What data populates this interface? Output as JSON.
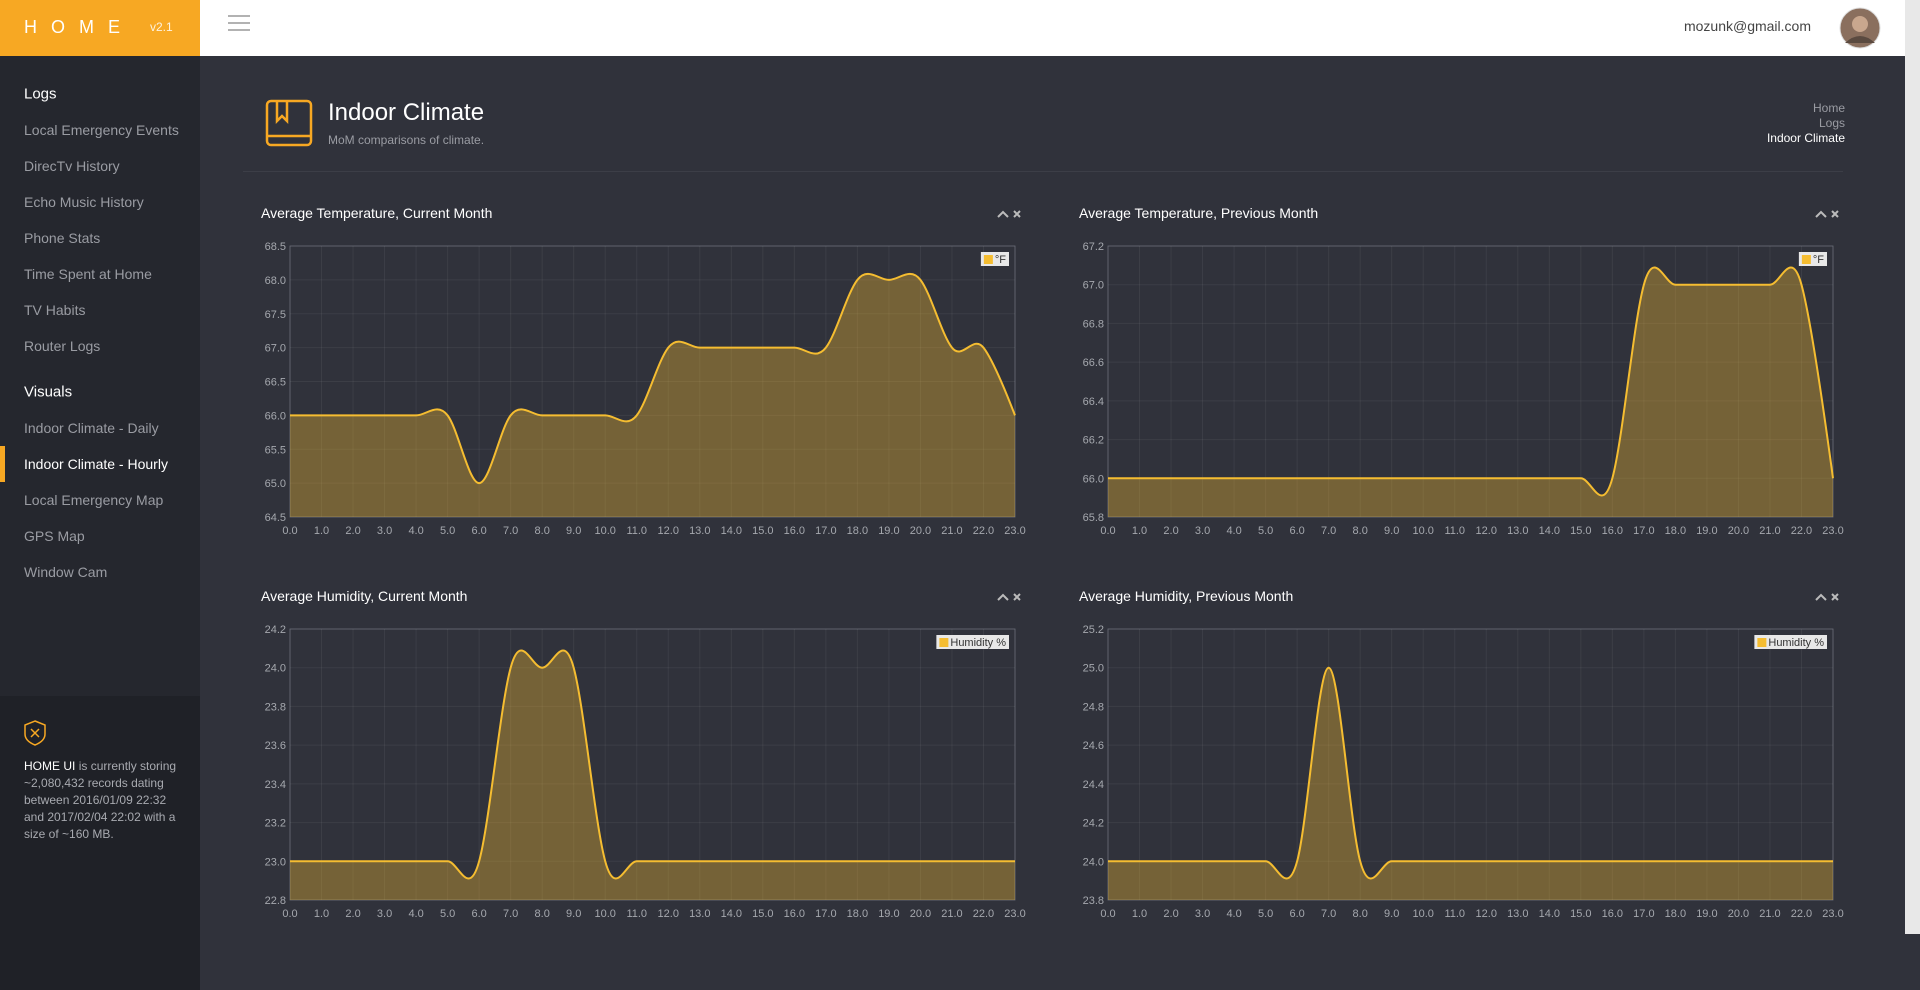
{
  "header": {
    "logo": "HOME",
    "version": "v2.1",
    "user": "mozunk@gmail.com"
  },
  "sidebar": {
    "sections": [
      {
        "title": "Logs",
        "items": [
          "Local Emergency Events",
          "DirecTv History",
          "Echo Music History",
          "Phone Stats",
          "Time Spent at Home",
          "TV Habits",
          "Router Logs"
        ]
      },
      {
        "title": "Visuals",
        "items": [
          "Indoor Climate - Daily",
          "Indoor Climate - Hourly",
          "Local Emergency Map",
          "GPS Map",
          "Window Cam"
        ]
      }
    ]
  },
  "info": {
    "brand": "HOME UI",
    "text": "is currently storing ~2,080,432 records dating between 2016/01/09 22:32 and 2017/02/04 22:02 with a size of ~160 MB."
  },
  "page": {
    "title": "Indoor Climate",
    "subtitle": "MoM comparisons of climate.",
    "breadcrumb": [
      "Home",
      "Logs",
      "Indoor Climate"
    ]
  },
  "chart_data": [
    {
      "type": "line",
      "title": "Average Temperature, Current Month",
      "x": [
        0,
        1,
        2,
        3,
        4,
        5,
        6,
        7,
        8,
        9,
        10,
        11,
        12,
        13,
        14,
        15,
        16,
        17,
        18,
        19,
        20,
        21,
        22,
        23
      ],
      "series": [
        {
          "name": "°F",
          "color": "#f5bd31",
          "values": [
            66,
            66,
            66,
            66,
            66,
            66,
            65,
            66,
            66,
            66,
            66,
            66,
            67,
            67,
            67,
            67,
            67,
            67,
            68,
            68,
            68,
            67,
            67,
            66
          ]
        }
      ],
      "fill": true,
      "grid": true,
      "legend": "upper right",
      "xlim": [
        0,
        23
      ],
      "xticks": [
        {
          "value": 0,
          "label": "0.0"
        },
        {
          "value": 1,
          "label": "1.0"
        },
        {
          "value": 2,
          "label": "2.0"
        },
        {
          "value": 3,
          "label": "3.0"
        },
        {
          "value": 4,
          "label": "4.0"
        },
        {
          "value": 5,
          "label": "5.0"
        },
        {
          "value": 6,
          "label": "6.0"
        },
        {
          "value": 7,
          "label": "7.0"
        },
        {
          "value": 8,
          "label": "8.0"
        },
        {
          "value": 9,
          "label": "9.0"
        },
        {
          "value": 10,
          "label": "10.0"
        },
        {
          "value": 11,
          "label": "11.0"
        },
        {
          "value": 12,
          "label": "12.0"
        },
        {
          "value": 13,
          "label": "13.0"
        },
        {
          "value": 14,
          "label": "14.0"
        },
        {
          "value": 15,
          "label": "15.0"
        },
        {
          "value": 16,
          "label": "16.0"
        },
        {
          "value": 17,
          "label": "17.0"
        },
        {
          "value": 18,
          "label": "18.0"
        },
        {
          "value": 19,
          "label": "19.0"
        },
        {
          "value": 20,
          "label": "20.0"
        },
        {
          "value": 21,
          "label": "21.0"
        },
        {
          "value": 22,
          "label": "22.0"
        },
        {
          "value": 23,
          "label": "23.0"
        }
      ],
      "ylim": [
        64.5,
        68.5
      ],
      "yticks": [
        64.5,
        {
          "value": 65,
          "label": "65.0"
        },
        65.5,
        {
          "value": 66,
          "label": "66.0"
        },
        66.5,
        {
          "value": 67,
          "label": "67.0"
        },
        67.5,
        {
          "value": 68,
          "label": "68.0"
        },
        68.5
      ]
    },
    {
      "type": "line",
      "title": "Average Temperature, Previous Month",
      "x": [
        0,
        1,
        2,
        3,
        4,
        5,
        6,
        7,
        8,
        9,
        10,
        11,
        12,
        13,
        14,
        15,
        16,
        17,
        18,
        19,
        20,
        21,
        22,
        23
      ],
      "series": [
        {
          "name": "°F",
          "color": "#f5bd31",
          "values": [
            66,
            66,
            66,
            66,
            66,
            66,
            66,
            66,
            66,
            66,
            66,
            66,
            66,
            66,
            66,
            66,
            66,
            67,
            67,
            67,
            67,
            67,
            67,
            66
          ]
        }
      ],
      "fill": true,
      "grid": true,
      "legend": "upper right",
      "xlim": [
        0,
        23
      ],
      "xticks": [
        {
          "value": 0,
          "label": "0.0"
        },
        {
          "value": 1,
          "label": "1.0"
        },
        {
          "value": 2,
          "label": "2.0"
        },
        {
          "value": 3,
          "label": "3.0"
        },
        {
          "value": 4,
          "label": "4.0"
        },
        {
          "value": 5,
          "label": "5.0"
        },
        {
          "value": 6,
          "label": "6.0"
        },
        {
          "value": 7,
          "label": "7.0"
        },
        {
          "value": 8,
          "label": "8.0"
        },
        {
          "value": 9,
          "label": "9.0"
        },
        {
          "value": 10,
          "label": "10.0"
        },
        {
          "value": 11,
          "label": "11.0"
        },
        {
          "value": 12,
          "label": "12.0"
        },
        {
          "value": 13,
          "label": "13.0"
        },
        {
          "value": 14,
          "label": "14.0"
        },
        {
          "value": 15,
          "label": "15.0"
        },
        {
          "value": 16,
          "label": "16.0"
        },
        {
          "value": 17,
          "label": "17.0"
        },
        {
          "value": 18,
          "label": "18.0"
        },
        {
          "value": 19,
          "label": "19.0"
        },
        {
          "value": 20,
          "label": "20.0"
        },
        {
          "value": 21,
          "label": "21.0"
        },
        {
          "value": 22,
          "label": "22.0"
        },
        {
          "value": 23,
          "label": "23.0"
        }
      ],
      "ylim": [
        65.8,
        67.2
      ],
      "yticks": [
        65.8,
        {
          "value": 66,
          "label": "66.0"
        },
        66.2,
        66.4,
        66.6,
        66.8,
        {
          "value": 67,
          "label": "67.0"
        },
        67.2
      ]
    },
    {
      "type": "line",
      "title": "Average Humidity, Current Month",
      "x": [
        0,
        1,
        2,
        3,
        4,
        5,
        6,
        7,
        8,
        9,
        10,
        11,
        12,
        13,
        14,
        15,
        16,
        17,
        18,
        19,
        20,
        21,
        22,
        23
      ],
      "series": [
        {
          "name": "Humidity %",
          "color": "#f5bd31",
          "values": [
            23,
            23,
            23,
            23,
            23,
            23,
            23,
            24,
            24,
            24,
            23,
            23,
            23,
            23,
            23,
            23,
            23,
            23,
            23,
            23,
            23,
            23,
            23,
            23
          ]
        }
      ],
      "fill": true,
      "grid": true,
      "legend": "upper right",
      "xlim": [
        0,
        23
      ],
      "xticks": [
        {
          "value": 0,
          "label": "0.0"
        },
        {
          "value": 1,
          "label": "1.0"
        },
        {
          "value": 2,
          "label": "2.0"
        },
        {
          "value": 3,
          "label": "3.0"
        },
        {
          "value": 4,
          "label": "4.0"
        },
        {
          "value": 5,
          "label": "5.0"
        },
        {
          "value": 6,
          "label": "6.0"
        },
        {
          "value": 7,
          "label": "7.0"
        },
        {
          "value": 8,
          "label": "8.0"
        },
        {
          "value": 9,
          "label": "9.0"
        },
        {
          "value": 10,
          "label": "10.0"
        },
        {
          "value": 11,
          "label": "11.0"
        },
        {
          "value": 12,
          "label": "12.0"
        },
        {
          "value": 13,
          "label": "13.0"
        },
        {
          "value": 14,
          "label": "14.0"
        },
        {
          "value": 15,
          "label": "15.0"
        },
        {
          "value": 16,
          "label": "16.0"
        },
        {
          "value": 17,
          "label": "17.0"
        },
        {
          "value": 18,
          "label": "18.0"
        },
        {
          "value": 19,
          "label": "19.0"
        },
        {
          "value": 20,
          "label": "20.0"
        },
        {
          "value": 21,
          "label": "21.0"
        },
        {
          "value": 22,
          "label": "22.0"
        },
        {
          "value": 23,
          "label": "23.0"
        }
      ],
      "ylim": [
        22.8,
        24.2
      ],
      "yticks": [
        22.8,
        {
          "value": 23,
          "label": "23.0"
        },
        23.2,
        23.4,
        23.6,
        23.8,
        {
          "value": 24,
          "label": "24.0"
        },
        24.2
      ]
    },
    {
      "type": "line",
      "title": "Average Humidity, Previous Month",
      "x": [
        0,
        1,
        2,
        3,
        4,
        5,
        6,
        7,
        8,
        9,
        10,
        11,
        12,
        13,
        14,
        15,
        16,
        17,
        18,
        19,
        20,
        21,
        22,
        23
      ],
      "series": [
        {
          "name": "Humidity %",
          "color": "#f5bd31",
          "values": [
            24,
            24,
            24,
            24,
            24,
            24,
            24,
            25,
            24,
            24,
            24,
            24,
            24,
            24,
            24,
            24,
            24,
            24,
            24,
            24,
            24,
            24,
            24,
            24
          ]
        }
      ],
      "fill": true,
      "grid": true,
      "legend": "upper right",
      "xlim": [
        0,
        23
      ],
      "xticks": [
        {
          "value": 0,
          "label": "0.0"
        },
        {
          "value": 1,
          "label": "1.0"
        },
        {
          "value": 2,
          "label": "2.0"
        },
        {
          "value": 3,
          "label": "3.0"
        },
        {
          "value": 4,
          "label": "4.0"
        },
        {
          "value": 5,
          "label": "5.0"
        },
        {
          "value": 6,
          "label": "6.0"
        },
        {
          "value": 7,
          "label": "7.0"
        },
        {
          "value": 8,
          "label": "8.0"
        },
        {
          "value": 9,
          "label": "9.0"
        },
        {
          "value": 10,
          "label": "10.0"
        },
        {
          "value": 11,
          "label": "11.0"
        },
        {
          "value": 12,
          "label": "12.0"
        },
        {
          "value": 13,
          "label": "13.0"
        },
        {
          "value": 14,
          "label": "14.0"
        },
        {
          "value": 15,
          "label": "15.0"
        },
        {
          "value": 16,
          "label": "16.0"
        },
        {
          "value": 17,
          "label": "17.0"
        },
        {
          "value": 18,
          "label": "18.0"
        },
        {
          "value": 19,
          "label": "19.0"
        },
        {
          "value": 20,
          "label": "20.0"
        },
        {
          "value": 21,
          "label": "21.0"
        },
        {
          "value": 22,
          "label": "22.0"
        },
        {
          "value": 23,
          "label": "23.0"
        }
      ],
      "ylim": [
        23.8,
        25.2
      ],
      "yticks": [
        23.8,
        {
          "value": 24,
          "label": "24.0"
        },
        24.2,
        24.4,
        24.6,
        24.8,
        {
          "value": 25,
          "label": "25.0"
        },
        25.2
      ]
    }
  ]
}
